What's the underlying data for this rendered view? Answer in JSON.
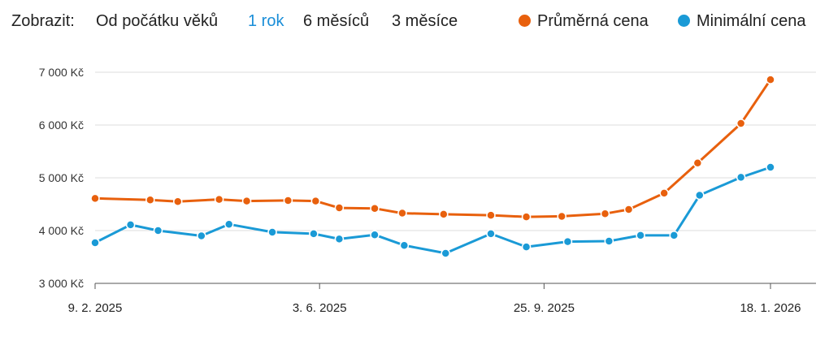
{
  "toolbar": {
    "label": "Zobrazit:",
    "ranges": [
      "Od počátku věků",
      "1 rok",
      "6 měsíců",
      "3 měsíce"
    ],
    "active_range": "1 rok"
  },
  "legend": [
    {
      "name": "Průměrná cena",
      "color": "#e8600d"
    },
    {
      "name": "Minimální cena",
      "color": "#1a9ad6"
    }
  ],
  "colors": {
    "accent": "#1a8ed8",
    "grid": "#dddddd",
    "axis": "#555555"
  },
  "chart_data": {
    "type": "line",
    "title": "",
    "xlabel": "",
    "ylabel": "",
    "x_tick_labels": [
      "9. 2. 2025",
      "3. 6. 2025",
      "25. 9. 2025",
      "18. 1. 2026"
    ],
    "y_tick_labels": [
      "3 000 Kč",
      "4 000 Kč",
      "5 000 Kč",
      "6 000 Kč",
      "7 000 Kč"
    ],
    "ylim": [
      3000,
      7000
    ],
    "xlim": [
      "2025-02-09",
      "2026-01-18"
    ],
    "grid": true,
    "legend_position": "top-right",
    "series": [
      {
        "name": "Průměrná cena",
        "color": "#e8600d",
        "points": [
          [
            "2025-02-09",
            4610
          ],
          [
            "2025-03-09",
            4580
          ],
          [
            "2025-03-23",
            4550
          ],
          [
            "2025-04-13",
            4590
          ],
          [
            "2025-04-27",
            4560
          ],
          [
            "2025-05-18",
            4570
          ],
          [
            "2025-06-01",
            4560
          ],
          [
            "2025-06-13",
            4430
          ],
          [
            "2025-07-01",
            4420
          ],
          [
            "2025-07-15",
            4330
          ],
          [
            "2025-08-05",
            4310
          ],
          [
            "2025-08-29",
            4290
          ],
          [
            "2025-09-16",
            4260
          ],
          [
            "2025-10-04",
            4270
          ],
          [
            "2025-10-26",
            4320
          ],
          [
            "2025-11-07",
            4400
          ],
          [
            "2025-11-25",
            4710
          ],
          [
            "2025-12-12",
            5280
          ],
          [
            "2026-01-03",
            6030
          ],
          [
            "2026-01-18",
            6860
          ]
        ]
      },
      {
        "name": "Minimální cena",
        "color": "#1a9ad6",
        "points": [
          [
            "2025-02-09",
            3770
          ],
          [
            "2025-02-27",
            4110
          ],
          [
            "2025-03-13",
            4000
          ],
          [
            "2025-04-04",
            3900
          ],
          [
            "2025-04-18",
            4120
          ],
          [
            "2025-05-10",
            3970
          ],
          [
            "2025-05-31",
            3940
          ],
          [
            "2025-06-13",
            3840
          ],
          [
            "2025-07-01",
            3920
          ],
          [
            "2025-07-16",
            3720
          ],
          [
            "2025-08-06",
            3570
          ],
          [
            "2025-08-29",
            3940
          ],
          [
            "2025-09-16",
            3690
          ],
          [
            "2025-10-07",
            3790
          ],
          [
            "2025-10-28",
            3800
          ],
          [
            "2025-11-13",
            3910
          ],
          [
            "2025-11-30",
            3910
          ],
          [
            "2025-12-13",
            4670
          ],
          [
            "2026-01-03",
            5010
          ],
          [
            "2026-01-18",
            5200
          ]
        ]
      }
    ]
  }
}
